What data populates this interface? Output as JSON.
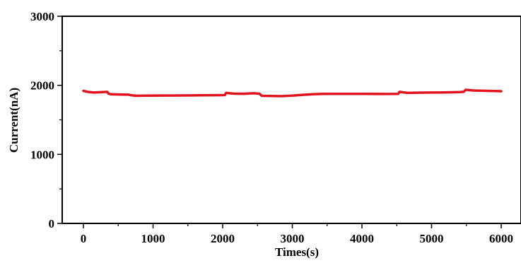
{
  "chart_data": {
    "type": "line",
    "title": "",
    "xlabel": "Times(s)",
    "ylabel": "Current(nA)",
    "xlim": [
      -300,
      6300
    ],
    "ylim": [
      0,
      3000
    ],
    "x_ticks": [
      0,
      1000,
      2000,
      3000,
      4000,
      5000,
      6000
    ],
    "y_ticks": [
      0,
      1000,
      2000,
      3000
    ],
    "x_tick_labels": [
      "0",
      "1000",
      "2000",
      "3000",
      "4000",
      "5000",
      "6000"
    ],
    "y_tick_labels": [
      "0",
      "1000",
      "2000",
      "3000"
    ],
    "grid": false,
    "legend": "none",
    "series": [
      {
        "color": "#e0141e",
        "x": [
          0,
          60,
          150,
          250,
          340,
          360,
          400,
          500,
          650,
          690,
          760,
          900,
          1100,
          1300,
          1500,
          1700,
          1900,
          2030,
          2050,
          2150,
          2300,
          2450,
          2530,
          2560,
          2700,
          2850,
          3000,
          3150,
          3300,
          3450,
          3700,
          4000,
          4300,
          4520,
          4540,
          4650,
          4800,
          5000,
          5200,
          5400,
          5460,
          5490,
          5600,
          5800,
          6000
        ],
        "y": [
          1920,
          1905,
          1895,
          1900,
          1905,
          1880,
          1870,
          1868,
          1865,
          1855,
          1848,
          1850,
          1852,
          1852,
          1853,
          1855,
          1857,
          1858,
          1890,
          1880,
          1878,
          1885,
          1878,
          1848,
          1845,
          1843,
          1850,
          1862,
          1872,
          1876,
          1877,
          1877,
          1875,
          1876,
          1905,
          1890,
          1893,
          1895,
          1897,
          1902,
          1905,
          1935,
          1925,
          1920,
          1915
        ]
      }
    ]
  }
}
